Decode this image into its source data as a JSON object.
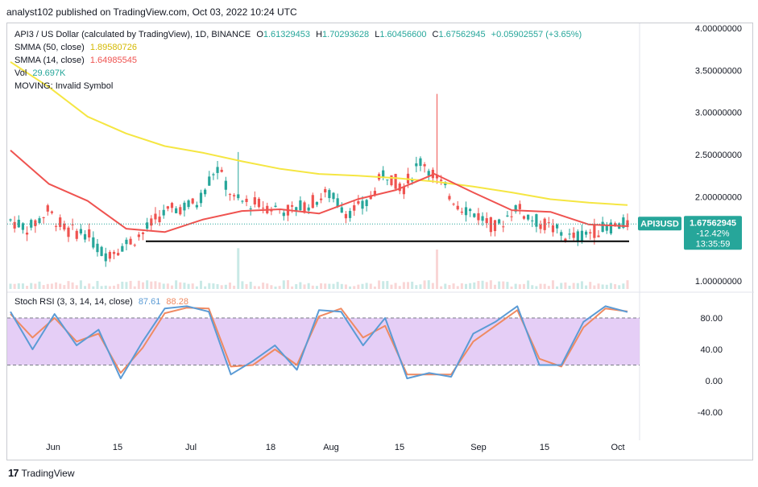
{
  "header": {
    "text": "analyst102 published on TradingView.com, Oct 03, 2022 10:24 UTC"
  },
  "legend": {
    "symbol_line": "API3 / US Dollar (calculated by TradingView), 1D, BINANCE",
    "ohlc": {
      "o_label": "O",
      "o": "1.61329453",
      "h_label": "H",
      "h": "1.70293628",
      "l_label": "L",
      "l": "1.60456600",
      "c_label": "C",
      "c": "1.67562945",
      "chg": "+0.05902557 (+3.65%)"
    },
    "smma50": {
      "label": "SMMA (50, close)",
      "value": "1.89580726"
    },
    "smma14": {
      "label": "SMMA (14, close)",
      "value": "1.64985545"
    },
    "vol": {
      "label": "Vol",
      "value": "29.697K"
    },
    "moving": {
      "label": "MOVING: Invalid Symbol"
    }
  },
  "stoch": {
    "label": "Stoch RSI (3, 3, 14, 14, close)",
    "k": "87.61",
    "d": "88.28"
  },
  "price_tag": {
    "symbol": "API3USD",
    "price": "1.67562945",
    "change": "-12.42%",
    "countdown": "13:35:59"
  },
  "footer": {
    "logo_text": "TradingView"
  },
  "colors": {
    "up": "#26a69a",
    "down": "#ef5350",
    "smma50": "#f5e642",
    "smma14": "#ef5350",
    "k": "#5b9bd5",
    "d": "#ef8a62",
    "band": "#e1c6f5",
    "support": "#000000"
  },
  "chart_data": [
    {
      "type": "candlestick",
      "title": "API3 / US Dollar (calculated by TradingView), 1D, BINANCE",
      "x_ticks": [
        "Jun",
        "15",
        "Jul",
        "18",
        "Aug",
        "15",
        "Sep",
        "15",
        "Oct"
      ],
      "y_ticks": [
        "4.00000000",
        "3.50000000",
        "3.00000000",
        "2.50000000",
        "2.00000000",
        "1.00000000"
      ],
      "ylim": [
        0.9,
        4.0
      ],
      "last_close": 1.67562945,
      "support_level": 1.47,
      "smma50": {
        "name": "SMMA (50, close)",
        "values": [
          3.6,
          3.3,
          2.95,
          2.75,
          2.6,
          2.52,
          2.42,
          2.33,
          2.27,
          2.25,
          2.22,
          2.18,
          2.12,
          2.05,
          1.97,
          1.93,
          1.9
        ]
      },
      "smma14": {
        "name": "SMMA (14, close)",
        "values": [
          2.55,
          2.15,
          1.95,
          1.62,
          1.58,
          1.73,
          1.83,
          1.85,
          1.8,
          1.97,
          2.08,
          2.27,
          2.05,
          1.84,
          1.82,
          1.67,
          1.65
        ]
      },
      "closes": [
        1.72,
        1.62,
        1.83,
        1.59,
        1.58,
        1.31,
        1.42,
        1.55,
        1.78,
        1.87,
        1.92,
        2.36,
        1.95,
        1.92,
        1.87,
        1.83,
        1.92,
        2.04,
        1.82,
        1.89,
        2.3,
        2.1,
        2.45,
        2.15,
        1.9,
        1.78,
        1.62,
        1.88,
        1.72,
        1.62,
        1.5,
        1.58,
        1.64,
        1.68
      ]
    },
    {
      "type": "line",
      "title": "Stoch RSI (3, 3, 14, 14, close)",
      "y_ticks": [
        "80.00",
        "40.00",
        "0.00",
        "-40.00"
      ],
      "ylim": [
        -70,
        110
      ],
      "band": [
        20,
        80
      ],
      "series": [
        {
          "name": "K",
          "values": [
            88,
            40,
            85,
            45,
            65,
            3,
            50,
            92,
            95,
            88,
            8,
            25,
            45,
            14,
            90,
            88,
            45,
            80,
            3,
            10,
            5,
            60,
            75,
            95,
            20,
            20,
            75,
            95,
            87.61
          ]
        },
        {
          "name": "D",
          "values": [
            85,
            55,
            80,
            50,
            60,
            10,
            42,
            86,
            93,
            92,
            18,
            20,
            40,
            20,
            82,
            92,
            55,
            70,
            8,
            8,
            8,
            50,
            70,
            90,
            28,
            18,
            68,
            92,
            88.28
          ]
        }
      ]
    }
  ]
}
